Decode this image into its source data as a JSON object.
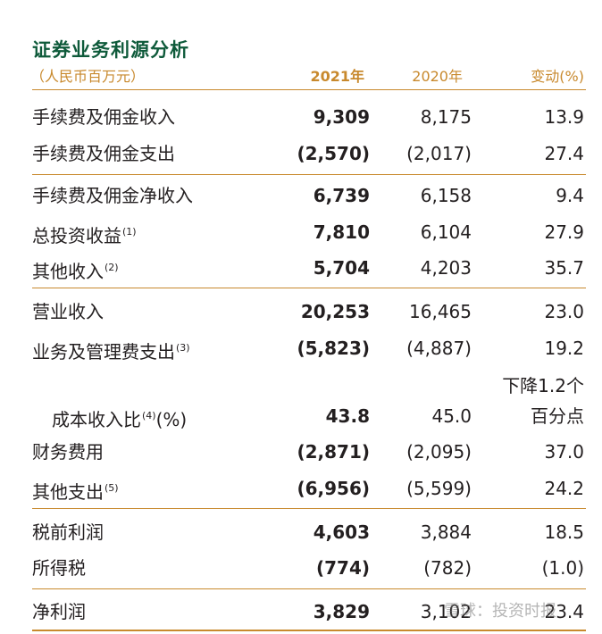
{
  "title": "证券业务利源分析",
  "header": {
    "label": "（人民币百万元）",
    "col_2021": "2021年",
    "col_2020": "2020年",
    "col_change": "变动(%)"
  },
  "rows": [
    {
      "label": "手续费及佣金收入",
      "note": "",
      "v2021": "9,309",
      "v2020": "8,175",
      "change": "13.9"
    },
    {
      "label": "手续费及佣金支出",
      "note": "",
      "v2021": "(2,570)",
      "v2020": "(2,017)",
      "change": "27.4"
    },
    {
      "label": "手续费及佣金净收入",
      "note": "",
      "v2021": "6,739",
      "v2020": "6,158",
      "change": "9.4"
    },
    {
      "label": "总投资收益",
      "note": "(1)",
      "v2021": "7,810",
      "v2020": "6,104",
      "change": "27.9"
    },
    {
      "label": "其他收入",
      "note": "(2)",
      "v2021": "5,704",
      "v2020": "4,203",
      "change": "35.7"
    },
    {
      "label": "营业收入",
      "note": "",
      "v2021": "20,253",
      "v2020": "16,465",
      "change": "23.0"
    },
    {
      "label": "业务及管理费支出",
      "note": "(3)",
      "v2021": "(5,823)",
      "v2020": "(4,887)",
      "change": "19.2"
    },
    {
      "label": "成本收入比",
      "note": "(4)",
      "suffix": "(%)",
      "v2021": "43.8",
      "v2020": "45.0",
      "change_line1": "下降1.2个",
      "change_line2": "百分点"
    },
    {
      "label": "财务费用",
      "note": "",
      "v2021": "(2,871)",
      "v2020": "(2,095)",
      "change": "37.0"
    },
    {
      "label": "其他支出",
      "note": "(5)",
      "v2021": "(6,956)",
      "v2020": "(5,599)",
      "change": "24.2"
    },
    {
      "label": "税前利润",
      "note": "",
      "v2021": "4,603",
      "v2020": "3,884",
      "change": "18.5"
    },
    {
      "label": "所得税",
      "note": "",
      "v2021": "(774)",
      "v2020": "(782)",
      "change": "(1.0)"
    },
    {
      "label": "净利润",
      "note": "",
      "v2021": "3,829",
      "v2020": "3,102",
      "change": "23.4"
    }
  ],
  "watermark": "雪球：投资时报",
  "colors": {
    "title": "#0e5a3a",
    "accent": "#c8892d",
    "text": "#231f20"
  }
}
